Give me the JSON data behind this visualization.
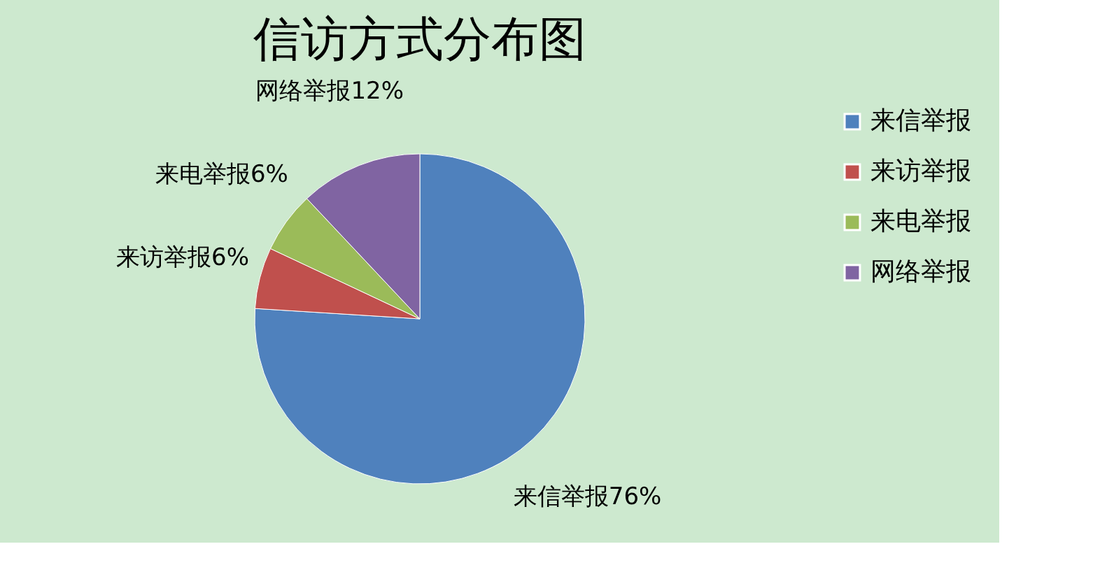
{
  "chart_data": {
    "type": "pie",
    "title": "信访方式分布图",
    "categories": [
      "来信举报",
      "来访举报",
      "来电举报",
      "网络举报"
    ],
    "values": [
      76,
      6,
      6,
      12
    ],
    "colors": [
      "#4f81bd",
      "#c0504d",
      "#9bbb59",
      "#8064a2"
    ],
    "value_labels": [
      "来信举报76%",
      "来访举报6%",
      "来电举报6%",
      "网络举报12%"
    ],
    "legend": "right"
  }
}
